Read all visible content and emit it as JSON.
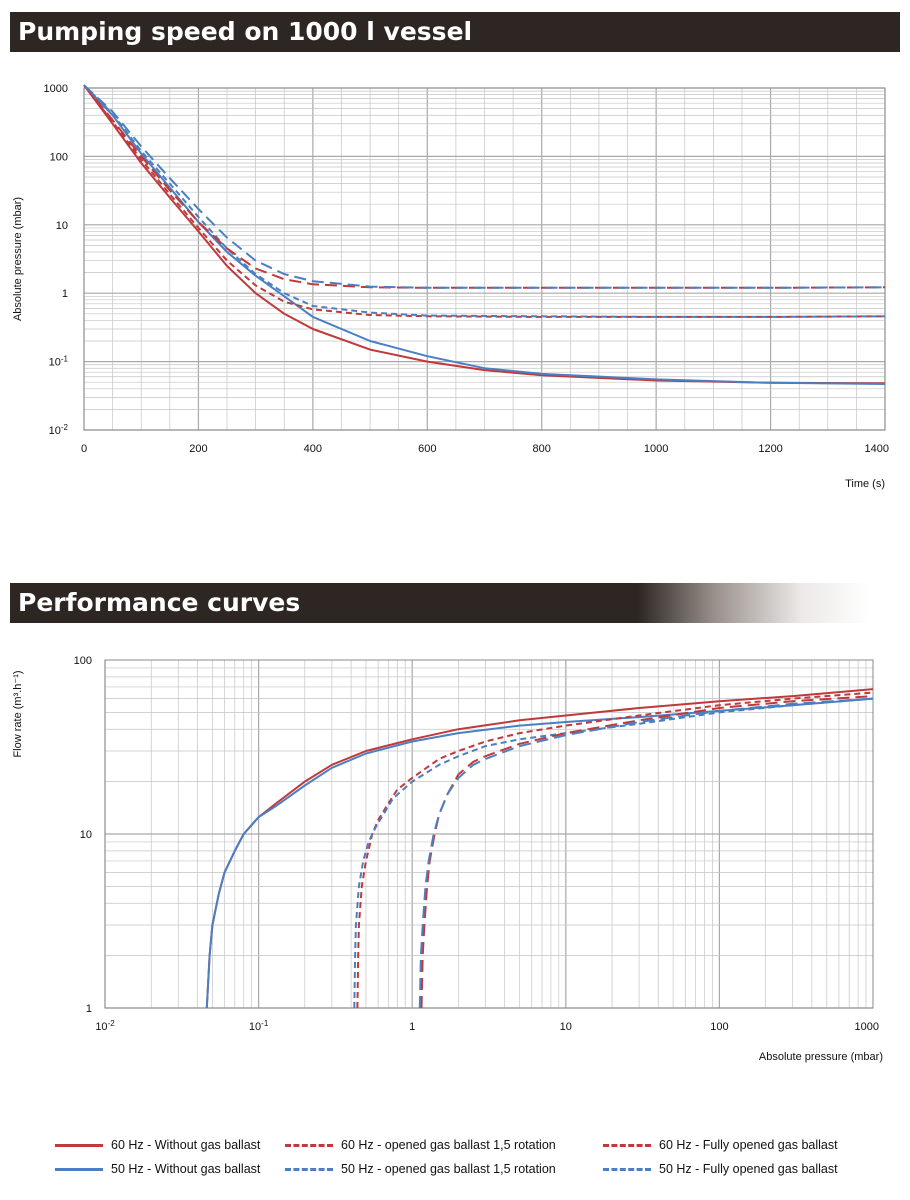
{
  "sections": {
    "top_title": "Pumping speed on 1000 l vessel",
    "bottom_title": "Performance curves"
  },
  "colors": {
    "red": "#c0393b",
    "blue": "#4b7fc2",
    "grid": "#c4c4c4",
    "banner": "#2d2622"
  },
  "chart_data": [
    {
      "type": "line",
      "title": "Pumping speed on 1000 l vessel",
      "xlabel": "Time (s)",
      "ylabel": "Absolute pressure (mbar)",
      "xlim": [
        0,
        1400
      ],
      "ylim": [
        0.01,
        1000
      ],
      "yscale": "log",
      "grid": true,
      "x_tick_labels": [
        "0",
        "200",
        "400",
        "600",
        "800",
        "1000",
        "1200",
        "1400"
      ],
      "y_tick_labels": [
        {
          "base": "10",
          "exp": "-2"
        },
        {
          "base": "10",
          "exp": "-1"
        },
        {
          "base": "1",
          "exp": ""
        },
        {
          "base": "10",
          "exp": ""
        },
        {
          "base": "100",
          "exp": ""
        },
        {
          "base": "1000",
          "exp": ""
        }
      ],
      "series": [
        {
          "name": "60 Hz - Without gas ballast",
          "color": "#c0393b",
          "dash": "solid",
          "x": [
            0,
            50,
            100,
            150,
            200,
            250,
            300,
            350,
            400,
            500,
            600,
            700,
            800,
            1000,
            1200,
            1400
          ],
          "y": [
            1100,
            300,
            80,
            25,
            8,
            2.5,
            1,
            0.5,
            0.3,
            0.15,
            0.1,
            0.075,
            0.063,
            0.053,
            0.049,
            0.048
          ]
        },
        {
          "name": "50 Hz - Without gas ballast",
          "color": "#4b7fc2",
          "dash": "solid",
          "x": [
            0,
            50,
            100,
            150,
            200,
            250,
            300,
            350,
            400,
            500,
            600,
            700,
            800,
            1000,
            1200,
            1400
          ],
          "y": [
            1100,
            400,
            110,
            35,
            11,
            4,
            1.8,
            0.9,
            0.45,
            0.2,
            0.12,
            0.08,
            0.066,
            0.055,
            0.049,
            0.047
          ]
        },
        {
          "name": "60 Hz - opened gas ballast 1,5 rotation",
          "color": "#c0393b",
          "dash": "short",
          "x": [
            0,
            50,
            100,
            150,
            200,
            250,
            300,
            350,
            400,
            500,
            600,
            800,
            1000,
            1200,
            1400
          ],
          "y": [
            1100,
            320,
            90,
            28,
            9,
            3,
            1.3,
            0.75,
            0.58,
            0.48,
            0.46,
            0.45,
            0.45,
            0.45,
            0.46
          ]
        },
        {
          "name": "50 Hz - opened gas ballast 1,5 rotation",
          "color": "#4b7fc2",
          "dash": "short",
          "x": [
            0,
            50,
            100,
            150,
            200,
            250,
            300,
            350,
            400,
            500,
            600,
            800,
            1000,
            1200,
            1400
          ],
          "y": [
            1100,
            420,
            120,
            40,
            13,
            4.5,
            1.9,
            1.0,
            0.65,
            0.52,
            0.47,
            0.46,
            0.45,
            0.45,
            0.46
          ]
        },
        {
          "name": "60 Hz - Fully opened gas ballast",
          "color": "#c0393b",
          "dash": "long",
          "x": [
            0,
            50,
            100,
            150,
            200,
            250,
            300,
            350,
            400,
            500,
            600,
            800,
            1000,
            1200,
            1400
          ],
          "y": [
            1100,
            340,
            100,
            32,
            11,
            4.5,
            2.3,
            1.6,
            1.35,
            1.22,
            1.2,
            1.2,
            1.2,
            1.2,
            1.22
          ]
        },
        {
          "name": "50 Hz - Fully opened gas ballast",
          "color": "#4b7fc2",
          "dash": "long",
          "x": [
            0,
            50,
            100,
            150,
            200,
            250,
            300,
            350,
            400,
            500,
            600,
            800,
            1000,
            1200,
            1400
          ],
          "y": [
            1100,
            450,
            140,
            48,
            17,
            6.5,
            3,
            1.9,
            1.5,
            1.25,
            1.2,
            1.2,
            1.2,
            1.2,
            1.22
          ]
        }
      ]
    },
    {
      "type": "line",
      "title": "Performance curves",
      "xlabel": "Absolute pressure (mbar)",
      "ylabel": "Flow rate (m³.h⁻¹)",
      "xlim": [
        0.01,
        1000
      ],
      "ylim": [
        1,
        100
      ],
      "xscale": "log",
      "yscale": "log",
      "grid": true,
      "x_tick_labels": [
        {
          "base": "10",
          "exp": "-2"
        },
        {
          "base": "10",
          "exp": "-1"
        },
        {
          "base": "1",
          "exp": ""
        },
        {
          "base": "10",
          "exp": ""
        },
        {
          "base": "100",
          "exp": ""
        },
        {
          "base": "1000",
          "exp": ""
        }
      ],
      "y_tick_labels": [
        "1",
        "10",
        "100"
      ],
      "series": [
        {
          "name": "60 Hz - Without gas ballast",
          "color": "#c0393b",
          "dash": "solid",
          "x": [
            0.046,
            0.048,
            0.05,
            0.055,
            0.06,
            0.07,
            0.08,
            0.1,
            0.13,
            0.2,
            0.3,
            0.5,
            1,
            2,
            5,
            10,
            30,
            100,
            300,
            1000
          ],
          "y": [
            1,
            2,
            3,
            4.5,
            6,
            8,
            10,
            12.5,
            15,
            20,
            25,
            30,
            35,
            40,
            45,
            48,
            53,
            58,
            62,
            68
          ]
        },
        {
          "name": "50 Hz - Without gas ballast",
          "color": "#4b7fc2",
          "dash": "solid",
          "x": [
            0.046,
            0.048,
            0.05,
            0.055,
            0.06,
            0.07,
            0.08,
            0.1,
            0.13,
            0.2,
            0.3,
            0.5,
            1,
            2,
            5,
            10,
            30,
            100,
            300,
            1000
          ],
          "y": [
            1,
            2,
            3,
            4.5,
            6,
            8,
            10,
            12.5,
            14.5,
            19,
            24,
            29,
            34,
            38,
            42,
            44,
            47,
            51,
            55,
            60
          ]
        },
        {
          "name": "60 Hz - opened gas ballast 1,5 rotation",
          "color": "#c0393b",
          "dash": "short",
          "x": [
            0.44,
            0.445,
            0.45,
            0.47,
            0.5,
            0.55,
            0.6,
            0.7,
            0.8,
            1,
            1.5,
            2,
            3,
            5,
            10,
            30,
            100,
            300,
            1000
          ],
          "y": [
            1,
            2,
            3,
            5,
            7,
            10,
            12,
            15,
            18,
            21,
            27,
            30,
            34,
            38,
            42,
            48,
            55,
            60,
            65
          ]
        },
        {
          "name": "50 Hz - opened gas ballast 1,5 rotation",
          "color": "#4b7fc2",
          "dash": "short",
          "x": [
            0.42,
            0.425,
            0.43,
            0.45,
            0.48,
            0.52,
            0.58,
            0.65,
            0.75,
            1,
            1.5,
            2,
            3,
            5,
            10,
            30,
            100,
            300,
            1000
          ],
          "y": [
            1,
            2,
            3,
            5,
            7,
            9,
            11,
            13,
            16,
            20,
            25,
            28,
            32,
            35,
            38,
            43,
            50,
            55,
            60
          ]
        },
        {
          "name": "60 Hz - Fully opened gas ballast",
          "color": "#c0393b",
          "dash": "long",
          "x": [
            1.15,
            1.17,
            1.2,
            1.25,
            1.3,
            1.4,
            1.5,
            1.7,
            2,
            2.5,
            3,
            5,
            10,
            30,
            100,
            300,
            1000
          ],
          "y": [
            1,
            2,
            3,
            5,
            7,
            10,
            13,
            17,
            22,
            26,
            28,
            33,
            38,
            45,
            53,
            58,
            62
          ]
        },
        {
          "name": "50 Hz - Fully opened gas ballast",
          "color": "#4b7fc2",
          "dash": "long",
          "x": [
            1.12,
            1.14,
            1.17,
            1.22,
            1.28,
            1.38,
            1.5,
            1.7,
            2,
            2.5,
            3,
            5,
            10,
            30,
            100,
            300,
            1000
          ],
          "y": [
            1,
            2,
            3,
            5,
            7,
            10,
            13,
            17,
            21,
            25,
            27,
            32,
            37,
            44,
            51,
            56,
            60
          ]
        }
      ]
    }
  ],
  "legend": [
    {
      "label": "60 Hz - Without gas ballast",
      "color": "#c0393b",
      "dash": "solid"
    },
    {
      "label": "50 Hz - Without gas ballast",
      "color": "#4b7fc2",
      "dash": "solid"
    },
    {
      "label": "60 Hz - opened gas ballast 1,5 rotation",
      "color": "#c0393b",
      "dash": "short"
    },
    {
      "label": "50 Hz - opened gas ballast 1,5 rotation",
      "color": "#4b7fc2",
      "dash": "short"
    },
    {
      "label": "60 Hz - Fully opened gas ballast",
      "color": "#c0393b",
      "dash": "long"
    },
    {
      "label": "50 Hz - Fully opened gas ballast",
      "color": "#4b7fc2",
      "dash": "long"
    }
  ]
}
